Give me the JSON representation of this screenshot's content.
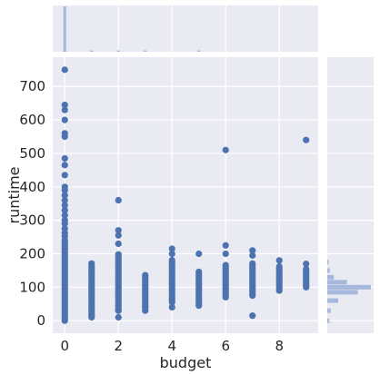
{
  "chart_data": {
    "type": "scatter",
    "xlabel": "budget",
    "ylabel": "runtime",
    "xlim": [
      -0.45,
      9.45
    ],
    "ylim": [
      -37.5,
      787.5
    ],
    "x_ticks": [
      0,
      2,
      4,
      6,
      8
    ],
    "y_ticks": [
      0,
      100,
      200,
      300,
      400,
      500,
      600,
      700
    ],
    "grid": true,
    "point_color": "#4c72b0",
    "hist_color": "#a6b8dc",
    "background": "#eaeaf2",
    "columns": [
      {
        "x": 0,
        "y_range": [
          0,
          240
        ],
        "y_extra": [
          252,
          262,
          275,
          290,
          300,
          315,
          330,
          345,
          360,
          375,
          390,
          400,
          435,
          465,
          485,
          550,
          560,
          600,
          630,
          645,
          750
        ]
      },
      {
        "x": 1,
        "y_range": [
          15,
          175
        ],
        "y_extra": [
          10
        ]
      },
      {
        "x": 2,
        "y_range": [
          30,
          200
        ],
        "y_extra": [
          10,
          30,
          230,
          255,
          270,
          360
        ]
      },
      {
        "x": 3,
        "y_range": [
          40,
          138
        ],
        "y_extra": [
          30,
          40
        ]
      },
      {
        "x": 4,
        "y_range": [
          55,
          185
        ],
        "y_extra": [
          40,
          200,
          215
        ]
      },
      {
        "x": 5,
        "y_range": [
          50,
          150
        ],
        "y_extra": [
          45,
          200
        ]
      },
      {
        "x": 6,
        "y_range": [
          70,
          170
        ],
        "y_extra": [
          200,
          225,
          510
        ]
      },
      {
        "x": 7,
        "y_range": [
          75,
          175
        ],
        "y_extra": [
          15,
          195,
          210
        ]
      },
      {
        "x": 8,
        "y_range": [
          90,
          165
        ],
        "y_extra": [
          180
        ]
      },
      {
        "x": 9,
        "y_range": [
          100,
          155
        ],
        "y_extra": [
          170,
          540
        ]
      }
    ],
    "x_hist": [
      {
        "x": 0,
        "height": 1.0
      },
      {
        "x": 1,
        "height": 0.03
      },
      {
        "x": 2,
        "height": 0.025
      },
      {
        "x": 3,
        "height": 0.02
      },
      {
        "x": 5,
        "height": 0.02
      }
    ],
    "y_hist": [
      {
        "y": 0,
        "width": 0.05
      },
      {
        "y": 30,
        "width": 0.08
      },
      {
        "y": 60,
        "width": 0.25
      },
      {
        "y": 85,
        "width": 0.7
      },
      {
        "y": 100,
        "width": 1.0
      },
      {
        "y": 115,
        "width": 0.45
      },
      {
        "y": 130,
        "width": 0.15
      },
      {
        "y": 150,
        "width": 0.06
      },
      {
        "y": 175,
        "width": 0.03
      }
    ]
  }
}
